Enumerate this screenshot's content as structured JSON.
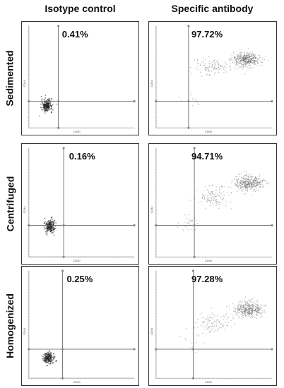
{
  "columns": [
    "Isotype control",
    "Specific antibody"
  ],
  "rows": [
    "Sedimented",
    "Centrifuged",
    "Homogenized"
  ],
  "chart_data": [
    {
      "type": "scatter",
      "row": "Sedimented",
      "column": "Isotype control",
      "xlabel": "CD90",
      "ylabel": "CD44",
      "quadrant_percent": "0.41%",
      "populations": [
        {
          "x": 0.17,
          "y": 0.22,
          "count": 220,
          "sx": 0.025,
          "sy": 0.03
        }
      ]
    },
    {
      "type": "scatter",
      "row": "Sedimented",
      "column": "Specific antibody",
      "xlabel": "CD90",
      "ylabel": "CD44",
      "quadrant_percent": "97.72%",
      "populations": [
        {
          "x": 0.78,
          "y": 0.67,
          "count": 420,
          "sx": 0.06,
          "sy": 0.035
        },
        {
          "x": 0.48,
          "y": 0.6,
          "count": 110,
          "sx": 0.08,
          "sy": 0.04
        },
        {
          "x": 0.3,
          "y": 0.3,
          "count": 12,
          "sx": 0.05,
          "sy": 0.05
        }
      ]
    },
    {
      "type": "scatter",
      "row": "Centrifuged",
      "column": "Isotype control",
      "xlabel": "CD90",
      "ylabel": "CD44",
      "quadrant_percent": "0.16%",
      "populations": [
        {
          "x": 0.2,
          "y": 0.28,
          "count": 200,
          "sx": 0.025,
          "sy": 0.03
        }
      ]
    },
    {
      "type": "scatter",
      "row": "Centrifuged",
      "column": "Specific antibody",
      "xlabel": "CD90",
      "ylabel": "CD44",
      "quadrant_percent": "94.71%",
      "populations": [
        {
          "x": 0.8,
          "y": 0.68,
          "count": 380,
          "sx": 0.06,
          "sy": 0.035
        },
        {
          "x": 0.5,
          "y": 0.55,
          "count": 120,
          "sx": 0.08,
          "sy": 0.05
        },
        {
          "x": 0.28,
          "y": 0.3,
          "count": 30,
          "sx": 0.05,
          "sy": 0.04
        }
      ]
    },
    {
      "type": "scatter",
      "row": "Homogenized",
      "column": "Isotype control",
      "xlabel": "CD90",
      "ylabel": "CD44",
      "quadrant_percent": "0.25%",
      "populations": [
        {
          "x": 0.19,
          "y": 0.19,
          "count": 200,
          "sx": 0.025,
          "sy": 0.025
        }
      ]
    },
    {
      "type": "scatter",
      "row": "Homogenized",
      "column": "Specific antibody",
      "xlabel": "CD90",
      "ylabel": "CD44",
      "quadrant_percent": "97.28%",
      "populations": [
        {
          "x": 0.8,
          "y": 0.64,
          "count": 380,
          "sx": 0.06,
          "sy": 0.035
        },
        {
          "x": 0.48,
          "y": 0.52,
          "count": 110,
          "sx": 0.08,
          "sy": 0.05
        },
        {
          "x": 0.3,
          "y": 0.32,
          "count": 15,
          "sx": 0.05,
          "sy": 0.05
        }
      ]
    }
  ]
}
